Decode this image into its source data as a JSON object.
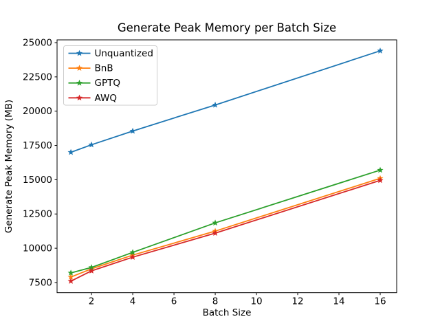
{
  "figure": {
    "background": "#ffffff"
  },
  "chart_data": {
    "type": "line",
    "title": "Generate Peak Memory per Batch Size",
    "xlabel": "Batch Size",
    "ylabel": "Generate Peak Memory (MB)",
    "x": [
      1,
      2,
      4,
      8,
      16
    ],
    "series": [
      {
        "name": "Unquantized",
        "color": "#1f77b4",
        "values": [
          17000,
          17550,
          18550,
          20450,
          24400
        ]
      },
      {
        "name": "BnB",
        "color": "#ff7f0e",
        "values": [
          7900,
          8500,
          9500,
          11250,
          15100
        ]
      },
      {
        "name": "GPTQ",
        "color": "#2ca02c",
        "values": [
          8200,
          8600,
          9700,
          11850,
          15700
        ]
      },
      {
        "name": "AWQ",
        "color": "#d62728",
        "values": [
          7600,
          8350,
          9350,
          11100,
          14950
        ]
      }
    ],
    "marker": "star",
    "xticks": [
      2,
      4,
      6,
      8,
      10,
      12,
      14,
      16
    ],
    "yticks": [
      7500,
      10000,
      12500,
      15000,
      17500,
      20000,
      22500,
      25000
    ],
    "xlim": [
      0.33,
      16.8
    ],
    "ylim": [
      6760,
      25200
    ],
    "grid": false,
    "legend_position": "upper-left",
    "axis_color": "#000000",
    "legend_border_color": "#cccccc"
  }
}
